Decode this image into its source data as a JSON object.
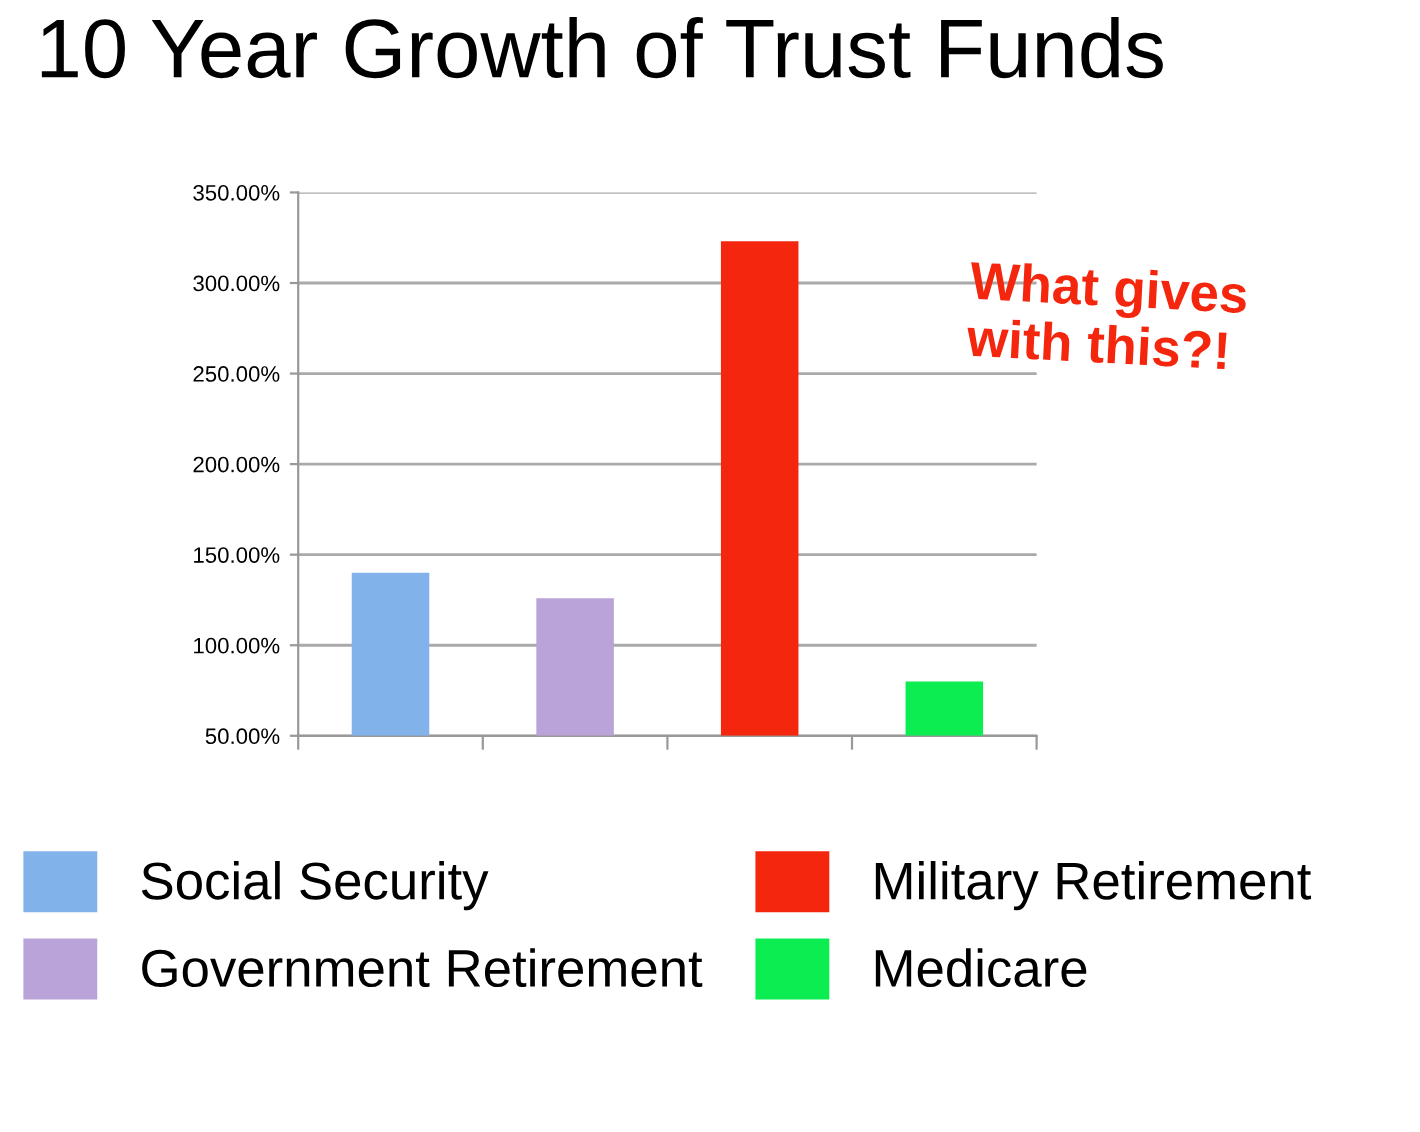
{
  "chart_data": {
    "type": "bar",
    "title": "10 Year Growth of Trust Funds",
    "categories": [
      null,
      null,
      null,
      null
    ],
    "series": [
      {
        "name": "Social Security",
        "color": "#82b2ea",
        "values": [
          140,
          null,
          null,
          null
        ]
      },
      {
        "name": "Government Retirement",
        "color": "#b9a3d9",
        "values": [
          null,
          126,
          null,
          null
        ]
      },
      {
        "name": "Military Retirement",
        "color": "#f5260e",
        "values": [
          null,
          null,
          323,
          null
        ]
      },
      {
        "name": "Medicare",
        "color": "#0ced52",
        "values": [
          null,
          null,
          null,
          80
        ]
      }
    ],
    "ylim": [
      50,
      350
    ],
    "yticks": [
      {
        "value": 50,
        "label": "50.00%"
      },
      {
        "value": 100,
        "label": "100.00%"
      },
      {
        "value": 150,
        "label": "150.00%"
      },
      {
        "value": 200,
        "label": "200.00%"
      },
      {
        "value": 250,
        "label": "250.00%"
      },
      {
        "value": 300,
        "label": "300.00%"
      },
      {
        "value": 350,
        "label": "350.00%"
      }
    ],
    "grid": "y",
    "legend": "bottom",
    "annotations": [
      "What gives\nwith this?!"
    ]
  }
}
